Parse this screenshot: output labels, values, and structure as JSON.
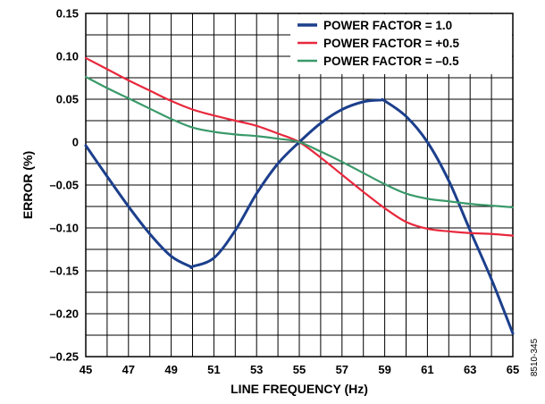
{
  "chart_data": {
    "type": "line",
    "xlabel": "LINE FREQUENCY (Hz)",
    "ylabel": "ERROR (%)",
    "xlim": [
      45,
      65
    ],
    "ylim": [
      -0.25,
      0.15
    ],
    "x_ticks": [
      45,
      47,
      49,
      51,
      53,
      55,
      57,
      59,
      61,
      63,
      65
    ],
    "x_tick_labels": [
      "45",
      "47",
      "49",
      "51",
      "53",
      "55",
      "57",
      "59",
      "61",
      "63",
      "65"
    ],
    "y_ticks": [
      0.15,
      0.1,
      0.05,
      0,
      -0.05,
      -0.1,
      -0.15,
      -0.2,
      -0.25
    ],
    "y_tick_labels": [
      "0.15",
      "0.10",
      "0.05",
      "0",
      "–0.05",
      "–0.10",
      "–0.15",
      "–0.20",
      "–0.25"
    ],
    "x_gridlines": [
      45,
      46,
      47,
      48,
      49,
      50,
      51,
      52,
      53,
      54,
      55,
      56,
      57,
      58,
      59,
      60,
      61,
      62,
      63,
      64,
      65
    ],
    "y_gridlines": [
      0.15,
      0.125,
      0.1,
      0.075,
      0.05,
      0.025,
      0,
      -0.025,
      -0.05,
      -0.075,
      -0.1,
      -0.125,
      -0.15,
      -0.175,
      -0.2,
      -0.225,
      -0.25
    ],
    "grid": true,
    "legend_position": "top-right",
    "series": [
      {
        "name": "POWER FACTOR = 1.0",
        "color": "#1c3f8c",
        "x": [
          45,
          46,
          47,
          48,
          49,
          49.9,
          50,
          51,
          52,
          53,
          54,
          55,
          56,
          57,
          58,
          58.8,
          59,
          60,
          61,
          62,
          63,
          64,
          65
        ],
        "y": [
          -0.004,
          -0.04,
          -0.075,
          -0.107,
          -0.133,
          -0.145,
          -0.145,
          -0.135,
          -0.103,
          -0.06,
          -0.025,
          0,
          0.022,
          0.038,
          0.047,
          0.049,
          0.048,
          0.03,
          0,
          -0.045,
          -0.103,
          -0.16,
          -0.223
        ]
      },
      {
        "name": "POWER FACTOR = +0.5",
        "color": "#e8283c",
        "x": [
          45,
          46,
          47,
          48,
          49,
          50,
          51,
          52,
          53,
          54,
          55,
          56,
          57,
          58,
          59,
          60,
          61,
          62,
          63,
          64,
          65
        ],
        "y": [
          0.098,
          0.085,
          0.072,
          0.06,
          0.048,
          0.038,
          0.031,
          0.025,
          0.019,
          0.01,
          0,
          -0.018,
          -0.038,
          -0.058,
          -0.077,
          -0.093,
          -0.101,
          -0.104,
          -0.106,
          -0.107,
          -0.109
        ]
      },
      {
        "name": "POWER FACTOR = –0.5",
        "color": "#3a9a6a",
        "x": [
          45,
          46,
          47,
          48,
          49,
          50,
          51,
          52,
          53,
          54,
          55,
          56,
          57,
          58,
          59,
          60,
          61,
          62,
          63,
          64,
          65
        ],
        "y": [
          0.076,
          0.063,
          0.051,
          0.039,
          0.027,
          0.017,
          0.012,
          0.009,
          0.007,
          0.004,
          0,
          -0.011,
          -0.023,
          -0.036,
          -0.049,
          -0.06,
          -0.066,
          -0.069,
          -0.072,
          -0.074,
          -0.076
        ]
      }
    ]
  },
  "figure_id": "8510-345"
}
